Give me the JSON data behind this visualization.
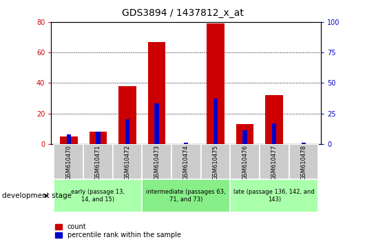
{
  "title": "GDS3894 / 1437812_x_at",
  "samples": [
    "GSM610470",
    "GSM610471",
    "GSM610472",
    "GSM610473",
    "GSM610474",
    "GSM610475",
    "GSM610476",
    "GSM610477",
    "GSM610478"
  ],
  "count_values": [
    5,
    8,
    38,
    67,
    0,
    79,
    13,
    32,
    0
  ],
  "percentile_values": [
    8,
    10,
    20,
    33,
    1,
    37,
    11,
    17,
    1
  ],
  "ylim_left": [
    0,
    80
  ],
  "ylim_right": [
    0,
    100
  ],
  "yticks_left": [
    0,
    20,
    40,
    60,
    80
  ],
  "yticks_right": [
    0,
    25,
    50,
    75,
    100
  ],
  "bar_color_count": "#cc0000",
  "bar_color_percentile": "#0000cc",
  "bar_width": 0.6,
  "pct_bar_width": 0.15,
  "group_colors": [
    "#aaffaa",
    "#88ee88",
    "#aaffaa"
  ],
  "group_defs": [
    [
      0,
      3,
      "early (passage 13,\n14, and 15)"
    ],
    [
      3,
      6,
      "intermediate (passages 63,\n71, and 73)"
    ],
    [
      6,
      9,
      "late (passage 136, 142, and\n143)"
    ]
  ],
  "tick_bg": "#cccccc",
  "legend_count_label": "count",
  "legend_percentile_label": "percentile rank within the sample",
  "dev_stage_label": "development stage"
}
